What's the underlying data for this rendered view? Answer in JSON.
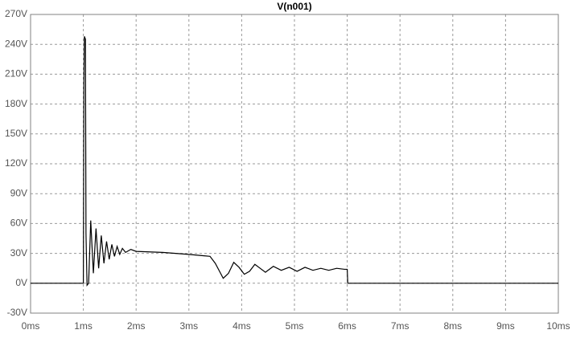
{
  "chart_data": {
    "type": "line",
    "title": "V(n001)",
    "x": [
      0,
      1.0,
      1.01,
      1.02,
      1.04,
      1.05,
      1.07,
      1.1,
      1.14,
      1.19,
      1.24,
      1.29,
      1.34,
      1.39,
      1.44,
      1.49,
      1.54,
      1.59,
      1.64,
      1.69,
      1.74,
      1.8,
      1.9,
      2.0,
      2.5,
      3.0,
      3.4,
      3.5,
      3.6,
      3.65,
      3.75,
      3.85,
      3.95,
      4.05,
      4.15,
      4.25,
      4.35,
      4.45,
      4.6,
      4.75,
      4.9,
      5.05,
      5.2,
      5.35,
      5.5,
      5.65,
      5.8,
      5.95,
      6.0,
      6.01,
      10
    ],
    "series": [
      {
        "name": "V(n001)",
        "color": "#000000",
        "values": [
          0,
          0,
          200,
          248,
          245,
          50,
          -2,
          0,
          63,
          10,
          55,
          15,
          48,
          20,
          42,
          24,
          39,
          27,
          37,
          29,
          35,
          31,
          34,
          32,
          31,
          29,
          27,
          20,
          10,
          5,
          10,
          21,
          16,
          9,
          12,
          19,
          15,
          11,
          17,
          13,
          16,
          12,
          16,
          13,
          15,
          13,
          15,
          14,
          14,
          0,
          0
        ]
      }
    ],
    "xlim": [
      0,
      10
    ],
    "xticks": [
      {
        "value": 0,
        "label": "0ms"
      },
      {
        "value": 1,
        "label": "1ms"
      },
      {
        "value": 2,
        "label": "2ms"
      },
      {
        "value": 3,
        "label": "3ms"
      },
      {
        "value": 4,
        "label": "4ms"
      },
      {
        "value": 5,
        "label": "5ms"
      },
      {
        "value": 6,
        "label": "6ms"
      },
      {
        "value": 7,
        "label": "7ms"
      },
      {
        "value": 8,
        "label": "8ms"
      },
      {
        "value": 9,
        "label": "9ms"
      },
      {
        "value": 10,
        "label": "10ms"
      }
    ],
    "ylim": [
      -30,
      270
    ],
    "yticks": [
      {
        "value": -30,
        "label": "-30V"
      },
      {
        "value": 0,
        "label": "0V"
      },
      {
        "value": 30,
        "label": "30V"
      },
      {
        "value": 60,
        "label": "60V"
      },
      {
        "value": 90,
        "label": "90V"
      },
      {
        "value": 120,
        "label": "120V"
      },
      {
        "value": 150,
        "label": "150V"
      },
      {
        "value": 180,
        "label": "180V"
      },
      {
        "value": 210,
        "label": "210V"
      },
      {
        "value": 240,
        "label": "240V"
      },
      {
        "value": 270,
        "label": "270V"
      }
    ],
    "grid": true
  }
}
